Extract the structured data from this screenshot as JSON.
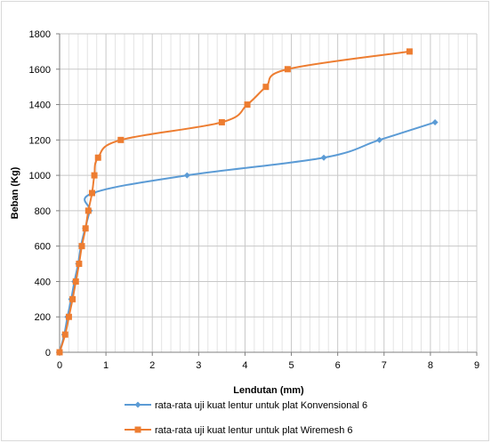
{
  "chart_data": {
    "type": "line",
    "title": "",
    "xlabel": "Lendutan (mm)",
    "ylabel": "Beban (Kg)",
    "xlim": [
      0,
      9
    ],
    "ylim": [
      0,
      1800
    ],
    "x_ticks": [
      0,
      1,
      2,
      3,
      4,
      5,
      6,
      7,
      8,
      9
    ],
    "y_ticks": [
      0,
      200,
      400,
      600,
      800,
      1000,
      1200,
      1400,
      1600,
      1800
    ],
    "x_minor_step": 0.2,
    "grid": true,
    "legend_position": "bottom",
    "series": [
      {
        "name": "rata-rata uji kuat lentur untuk plat Konvensional 6",
        "color": "#5b9bd5",
        "marker": "diamond",
        "points": [
          [
            0,
            0
          ],
          [
            0.1,
            100
          ],
          [
            0.17,
            200
          ],
          [
            0.25,
            300
          ],
          [
            0.32,
            400
          ],
          [
            0.4,
            500
          ],
          [
            0.46,
            600
          ],
          [
            0.55,
            700
          ],
          [
            0.65,
            800
          ],
          [
            0.72,
            900
          ],
          [
            2.75,
            1000
          ],
          [
            5.7,
            1100
          ],
          [
            6.9,
            1200
          ],
          [
            8.1,
            1300
          ]
        ]
      },
      {
        "name": "rata-rata uji kuat lentur untuk plat Wiremesh 6",
        "color": "#ed7d31",
        "marker": "square",
        "points": [
          [
            0,
            0
          ],
          [
            0.12,
            100
          ],
          [
            0.2,
            200
          ],
          [
            0.28,
            300
          ],
          [
            0.35,
            400
          ],
          [
            0.42,
            500
          ],
          [
            0.48,
            600
          ],
          [
            0.56,
            700
          ],
          [
            0.62,
            800
          ],
          [
            0.7,
            900
          ],
          [
            0.75,
            1000
          ],
          [
            0.83,
            1100
          ],
          [
            1.32,
            1200
          ],
          [
            3.5,
            1300
          ],
          [
            4.05,
            1400
          ],
          [
            4.45,
            1500
          ],
          [
            4.92,
            1600
          ],
          [
            7.55,
            1700
          ]
        ]
      }
    ]
  }
}
